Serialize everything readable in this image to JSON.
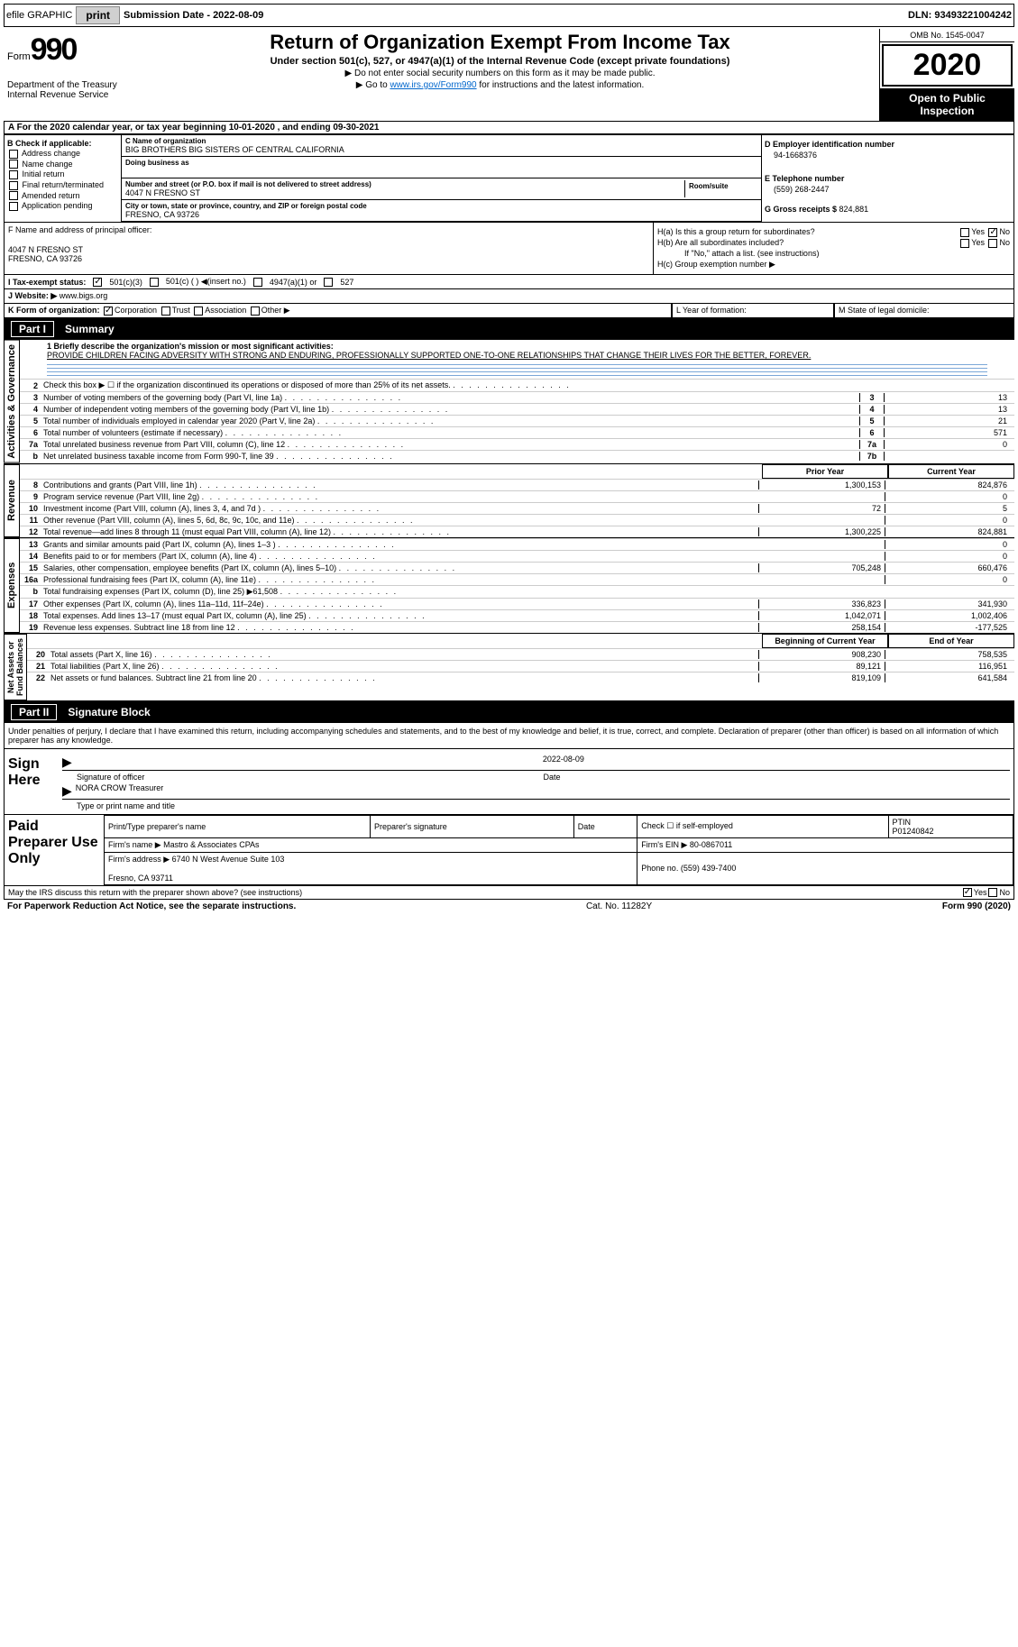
{
  "topbar": {
    "efile": "efile GRAPHIC",
    "print": "print",
    "sub_label": "Submission Date - ",
    "sub_date": "2022-08-09",
    "dln_label": "DLN: ",
    "dln": "93493221004242"
  },
  "header": {
    "form_word": "Form",
    "form_num": "990",
    "dept": "Department of the Treasury\nInternal Revenue Service",
    "title": "Return of Organization Exempt From Income Tax",
    "subtitle": "Under section 501(c), 527, or 4947(a)(1) of the Internal Revenue Code (except private foundations)",
    "note1": "▶ Do not enter social security numbers on this form as it may be made public.",
    "note2_pre": "▶ Go to ",
    "note2_link": "www.irs.gov/Form990",
    "note2_post": " for instructions and the latest information.",
    "omb": "OMB No. 1545-0047",
    "year": "2020",
    "open": "Open to Public\nInspection"
  },
  "tax_year": "For the 2020 calendar year, or tax year beginning 10-01-2020    , and ending 09-30-2021",
  "section_b": {
    "label": "B Check if applicable:",
    "items": [
      "Address change",
      "Name change",
      "Initial return",
      "Final return/terminated",
      "Amended return",
      "Application pending"
    ]
  },
  "section_c": {
    "name_label": "C Name of organization",
    "name": "BIG BROTHERS BIG SISTERS OF CENTRAL CALIFORNIA",
    "dba_label": "Doing business as",
    "addr_label": "Number and street (or P.O. box if mail is not delivered to street address)",
    "addr": "4047 N FRESNO ST",
    "room_label": "Room/suite",
    "city_label": "City or town, state or province, country, and ZIP or foreign postal code",
    "city": "FRESNO, CA  93726"
  },
  "section_d": {
    "ein_label": "D Employer identification number",
    "ein": "94-1668376",
    "phone_label": "E Telephone number",
    "phone": "(559) 268-2447",
    "gross_label": "G Gross receipts $ ",
    "gross": "824,881"
  },
  "section_f": {
    "label": "F  Name and address of principal officer:",
    "addr1": "4047 N FRESNO ST",
    "addr2": "FRESNO, CA  93726"
  },
  "section_h": {
    "ha_label": "H(a)  Is this a group return for subordinates?",
    "hb_label": "H(b)  Are all subordinates included?",
    "hb_note": "If \"No,\" attach a list. (see instructions)",
    "hc_label": "H(c)  Group exemption number ▶"
  },
  "row_i": {
    "label": "I    Tax-exempt status:",
    "opts": [
      "501(c)(3)",
      "501(c) (  ) ◀(insert no.)",
      "4947(a)(1) or",
      "527"
    ]
  },
  "row_j": {
    "label": "J   Website: ▶ ",
    "val": "www.bigs.org"
  },
  "row_k": {
    "label": "K Form of organization:",
    "opts": [
      "Corporation",
      "Trust",
      "Association",
      "Other ▶"
    ]
  },
  "row_l": "L Year of formation:",
  "row_m": "M State of legal domicile:",
  "part1": {
    "num": "Part I",
    "title": "Summary"
  },
  "mission": {
    "label": "1  Briefly describe the organization's mission or most significant activities:",
    "text": "PROVIDE CHILDREN FACING ADVERSITY WITH STRONG AND ENDURING, PROFESSIONALLY SUPPORTED ONE-TO-ONE RELATIONSHIPS THAT CHANGE THEIR LIVES FOR THE BETTER, FOREVER."
  },
  "vtabs": {
    "gov": "Activities & Governance",
    "rev": "Revenue",
    "exp": "Expenses",
    "net": "Net Assets or\nFund Balances"
  },
  "gov_lines": [
    {
      "n": "2",
      "d": "Check this box ▶ ☐  if the organization discontinued its operations or disposed of more than 25% of its net assets."
    },
    {
      "n": "3",
      "d": "Number of voting members of the governing body (Part VI, line 1a)",
      "k": "3",
      "v": "13"
    },
    {
      "n": "4",
      "d": "Number of independent voting members of the governing body (Part VI, line 1b)",
      "k": "4",
      "v": "13"
    },
    {
      "n": "5",
      "d": "Total number of individuals employed in calendar year 2020 (Part V, line 2a)",
      "k": "5",
      "v": "21"
    },
    {
      "n": "6",
      "d": "Total number of volunteers (estimate if necessary)",
      "k": "6",
      "v": "571"
    },
    {
      "n": "7a",
      "d": "Total unrelated business revenue from Part VIII, column (C), line 12",
      "k": "7a",
      "v": "0"
    },
    {
      "n": "b",
      "d": "Net unrelated business taxable income from Form 990-T, line 39",
      "k": "7b",
      "v": ""
    }
  ],
  "table_headers": {
    "prior": "Prior Year",
    "current": "Current Year"
  },
  "rev_lines": [
    {
      "n": "8",
      "d": "Contributions and grants (Part VIII, line 1h)",
      "p": "1,300,153",
      "c": "824,876"
    },
    {
      "n": "9",
      "d": "Program service revenue (Part VIII, line 2g)",
      "p": "",
      "c": "0"
    },
    {
      "n": "10",
      "d": "Investment income (Part VIII, column (A), lines 3, 4, and 7d )",
      "p": "72",
      "c": "5"
    },
    {
      "n": "11",
      "d": "Other revenue (Part VIII, column (A), lines 5, 6d, 8c, 9c, 10c, and 11e)",
      "p": "",
      "c": "0"
    },
    {
      "n": "12",
      "d": "Total revenue—add lines 8 through 11 (must equal Part VIII, column (A), line 12)",
      "p": "1,300,225",
      "c": "824,881"
    }
  ],
  "exp_lines": [
    {
      "n": "13",
      "d": "Grants and similar amounts paid (Part IX, column (A), lines 1–3 )",
      "p": "",
      "c": "0"
    },
    {
      "n": "14",
      "d": "Benefits paid to or for members (Part IX, column (A), line 4)",
      "p": "",
      "c": "0"
    },
    {
      "n": "15",
      "d": "Salaries, other compensation, employee benefits (Part IX, column (A), lines 5–10)",
      "p": "705,248",
      "c": "660,476"
    },
    {
      "n": "16a",
      "d": "Professional fundraising fees (Part IX, column (A), line 11e)",
      "p": "",
      "c": "0"
    },
    {
      "n": "b",
      "d": "Total fundraising expenses (Part IX, column (D), line 25) ▶61,508",
      "grey": true
    },
    {
      "n": "17",
      "d": "Other expenses (Part IX, column (A), lines 11a–11d, 11f–24e)",
      "p": "336,823",
      "c": "341,930"
    },
    {
      "n": "18",
      "d": "Total expenses. Add lines 13–17 (must equal Part IX, column (A), line 25)",
      "p": "1,042,071",
      "c": "1,002,406"
    },
    {
      "n": "19",
      "d": "Revenue less expenses. Subtract line 18 from line 12",
      "p": "258,154",
      "c": "-177,525"
    }
  ],
  "net_headers": {
    "beg": "Beginning of Current Year",
    "end": "End of Year"
  },
  "net_lines": [
    {
      "n": "20",
      "d": "Total assets (Part X, line 16)",
      "p": "908,230",
      "c": "758,535"
    },
    {
      "n": "21",
      "d": "Total liabilities (Part X, line 26)",
      "p": "89,121",
      "c": "116,951"
    },
    {
      "n": "22",
      "d": "Net assets or fund balances. Subtract line 21 from line 20",
      "p": "819,109",
      "c": "641,584"
    }
  ],
  "part2": {
    "num": "Part II",
    "title": "Signature Block"
  },
  "penalties": "Under penalties of perjury, I declare that I have examined this return, including accompanying schedules and statements, and to the best of my knowledge and belief, it is true, correct, and complete. Declaration of preparer (other than officer) is based on all information of which preparer has any knowledge.",
  "sign": {
    "label": "Sign Here",
    "sig_of": "Signature of officer",
    "date_label": "Date",
    "date": "2022-08-09",
    "officer": "NORA CROW  Treasurer",
    "type_label": "Type or print name and title"
  },
  "prep": {
    "label": "Paid Preparer Use Only",
    "h1": "Print/Type preparer's name",
    "h2": "Preparer's signature",
    "h3": "Date",
    "h4_pre": "Check ☐ if self-employed",
    "h5_label": "PTIN",
    "h5": "P01240842",
    "firm_label": "Firm's name    ▶ ",
    "firm": "Mastro & Associates CPAs",
    "ein_label": "Firm's EIN ▶ ",
    "ein": "80-0867011",
    "addr_label": "Firm's address ▶ ",
    "addr": "6740 N West Avenue Suite 103\n\nFresno, CA  93711",
    "phone_label": "Phone no. ",
    "phone": "(559) 439-7400"
  },
  "discuss": "May the IRS discuss this return with the preparer shown above? (see instructions)",
  "bottom": {
    "left": "For Paperwork Reduction Act Notice, see the separate instructions.",
    "mid": "Cat. No. 11282Y",
    "right": "Form 990 (2020)"
  }
}
